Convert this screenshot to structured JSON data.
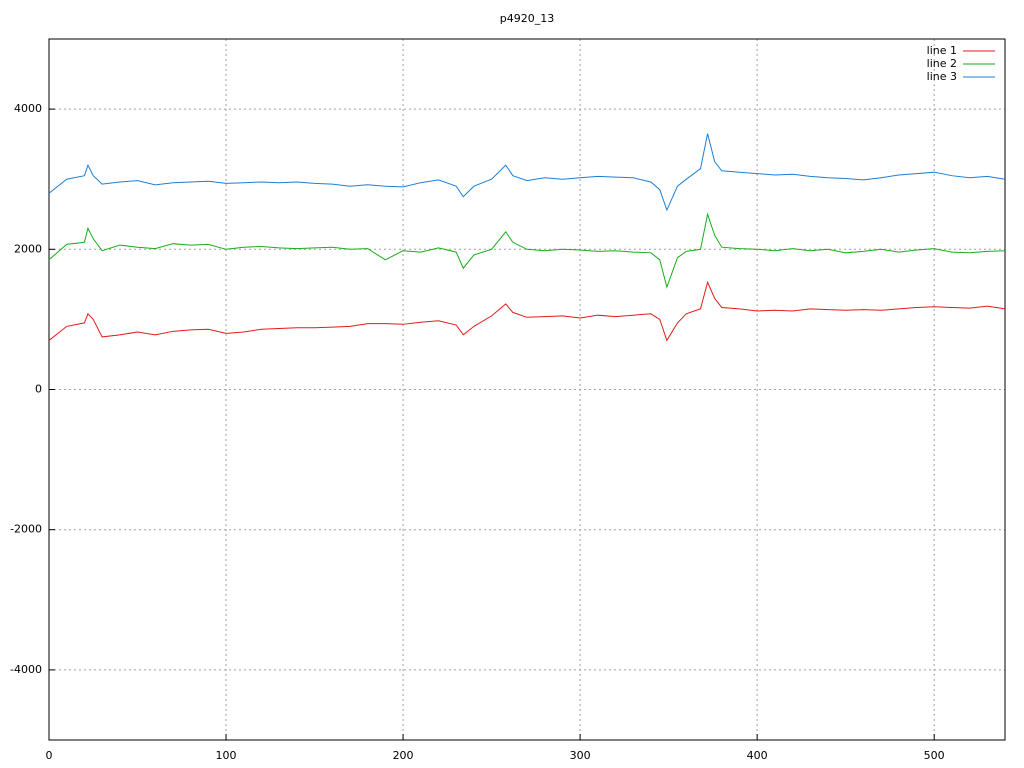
{
  "chart_data": {
    "type": "line",
    "title": "p4920_13",
    "x": [
      0,
      10,
      20,
      22,
      25,
      30,
      40,
      50,
      60,
      70,
      80,
      90,
      100,
      110,
      120,
      130,
      140,
      150,
      160,
      170,
      180,
      190,
      200,
      210,
      220,
      230,
      234,
      240,
      250,
      258,
      262,
      270,
      280,
      290,
      300,
      310,
      320,
      330,
      340,
      345,
      349,
      355,
      360,
      368,
      372,
      376,
      380,
      390,
      400,
      410,
      420,
      430,
      440,
      450,
      460,
      470,
      480,
      490,
      500,
      510,
      520,
      530,
      540
    ],
    "series": [
      {
        "name": "line 1",
        "color": "#e41a1c",
        "values": [
          700,
          900,
          950,
          1080,
          1000,
          750,
          780,
          820,
          780,
          830,
          850,
          860,
          800,
          820,
          860,
          870,
          880,
          880,
          890,
          900,
          940,
          940,
          930,
          960,
          980,
          920,
          780,
          900,
          1050,
          1220,
          1100,
          1030,
          1040,
          1050,
          1020,
          1060,
          1040,
          1060,
          1080,
          1000,
          700,
          950,
          1080,
          1150,
          1530,
          1300,
          1170,
          1150,
          1120,
          1130,
          1120,
          1150,
          1140,
          1130,
          1140,
          1130,
          1150,
          1170,
          1180,
          1170,
          1160,
          1190,
          1150
        ]
      },
      {
        "name": "line 2",
        "color": "#1aab1a",
        "values": [
          1850,
          2070,
          2100,
          2300,
          2150,
          1980,
          2060,
          2030,
          2010,
          2080,
          2060,
          2070,
          2000,
          2030,
          2040,
          2020,
          2010,
          2020,
          2030,
          2000,
          2010,
          1850,
          1980,
          1960,
          2020,
          1960,
          1730,
          1920,
          2000,
          2250,
          2100,
          2000,
          1980,
          2000,
          1990,
          1970,
          1980,
          1960,
          1950,
          1850,
          1460,
          1880,
          1970,
          2000,
          2500,
          2200,
          2030,
          2010,
          2000,
          1980,
          2010,
          1980,
          2000,
          1950,
          1970,
          2000,
          1960,
          1990,
          2010,
          1960,
          1950,
          1970,
          1980
        ]
      },
      {
        "name": "line 3",
        "color": "#1c7fd6",
        "values": [
          2800,
          3000,
          3050,
          3200,
          3050,
          2930,
          2960,
          2980,
          2920,
          2950,
          2960,
          2970,
          2940,
          2950,
          2960,
          2950,
          2960,
          2940,
          2930,
          2900,
          2920,
          2900,
          2890,
          2950,
          2990,
          2900,
          2750,
          2900,
          3000,
          3200,
          3050,
          2980,
          3020,
          3000,
          3020,
          3040,
          3030,
          3020,
          2960,
          2850,
          2560,
          2900,
          3000,
          3150,
          3650,
          3250,
          3120,
          3100,
          3080,
          3060,
          3070,
          3040,
          3020,
          3010,
          2990,
          3020,
          3060,
          3080,
          3100,
          3050,
          3020,
          3040,
          3000
        ]
      }
    ],
    "xlim": [
      0,
      540
    ],
    "xticks": [
      0,
      100,
      200,
      300,
      400,
      500
    ],
    "ylim": [
      -5000,
      5000
    ],
    "yticks": [
      -4000,
      -2000,
      0,
      2000,
      4000
    ],
    "grid": true,
    "legend": "top-right"
  }
}
